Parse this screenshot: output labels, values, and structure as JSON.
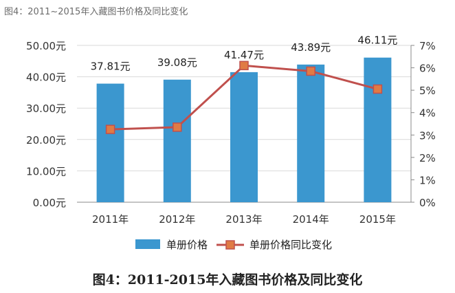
{
  "caption_top": "图4：2011~2015年入藏图书价格及同比变化",
  "caption_bottom": "图4：2011-2015年入藏图书价格及同比变化",
  "chart_data": {
    "type": "bar",
    "categories": [
      "2011年",
      "2012年",
      "2013年",
      "2014年",
      "2015年"
    ],
    "series": [
      {
        "name": "单册价格",
        "type": "bar",
        "axis": "left",
        "values": [
          37.81,
          39.08,
          41.47,
          43.89,
          46.11
        ],
        "labels": [
          "37.81元",
          "39.08元",
          "41.47元",
          "43.89元",
          "46.11元"
        ],
        "color": "#3b97cf"
      },
      {
        "name": "单册价格同比变化",
        "type": "line",
        "axis": "right",
        "values": [
          3.25,
          3.35,
          6.1,
          5.85,
          5.05
        ],
        "color": "#c0504d",
        "marker_color": "#e07b45"
      }
    ],
    "y_left": {
      "lim": [
        0,
        50
      ],
      "ticks": [
        0,
        10,
        20,
        30,
        40,
        50
      ],
      "tick_labels": [
        "0.00元",
        "10.00元",
        "20.00元",
        "30.00元",
        "40.00元",
        "50.00元"
      ]
    },
    "y_right": {
      "lim": [
        0,
        7
      ],
      "ticks": [
        0,
        1,
        2,
        3,
        4,
        5,
        6,
        7
      ],
      "tick_labels": [
        "0%",
        "1%",
        "2%",
        "3%",
        "4%",
        "5%",
        "6%",
        "7%"
      ]
    },
    "grid": true,
    "legend": "bottom"
  }
}
